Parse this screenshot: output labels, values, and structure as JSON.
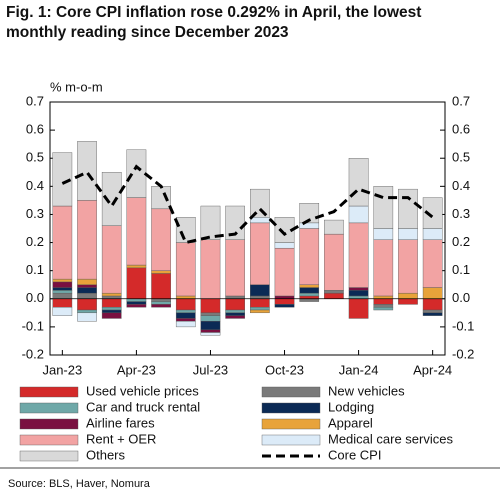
{
  "chart_data": {
    "type": "stacked-bar-line",
    "title": "Fig. 1: Core CPI inflation rose 0.292% in April, the lowest monthly reading since December 2023",
    "y_label": "% m-o-m",
    "source": "Source: BLS, Haver, Nomura",
    "categories": [
      "Jan-23",
      null,
      null,
      "Apr-23",
      null,
      null,
      "Jul-23",
      null,
      null,
      "Oct-23",
      null,
      null,
      "Jan-24",
      null,
      null,
      "Apr-24"
    ],
    "ylim": [
      -0.2,
      0.7
    ],
    "yticks": [
      -0.2,
      -0.1,
      {
        "value": 0,
        "label": "0.0"
      },
      0.1,
      0.2,
      0.3,
      0.4,
      0.5,
      0.6,
      0.7
    ],
    "series": [
      {
        "name": "Used vehicle prices",
        "color": "#d42a2a",
        "values": [
          -0.03,
          -0.04,
          -0.03,
          0.11,
          0.09,
          -0.04,
          -0.05,
          -0.04,
          -0.03,
          -0.02,
          0.01,
          0.02,
          -0.07,
          -0.02,
          -0.02,
          -0.04
        ]
      },
      {
        "name": "New vehicles",
        "color": "#7a7a7a",
        "values": [
          0.02,
          0.02,
          0.01,
          0,
          -0.01,
          0,
          -0.01,
          0.01,
          0.01,
          0,
          -0.01,
          0.01,
          0,
          -0.01,
          0,
          -0.01
        ]
      },
      {
        "name": "Car and truck rental",
        "color": "#6fa8a8",
        "values": [
          0.01,
          -0.01,
          -0.01,
          -0.01,
          -0.01,
          -0.01,
          -0.02,
          -0.01,
          -0.01,
          0,
          0.01,
          0,
          0.01,
          -0.01,
          0,
          0
        ]
      },
      {
        "name": "Lodging",
        "color": "#0b2a55",
        "values": [
          0.01,
          0.02,
          -0.01,
          -0.01,
          0,
          -0.02,
          -0.03,
          -0.01,
          0.04,
          -0.01,
          0.02,
          0,
          0.02,
          0,
          0,
          -0.01
        ]
      },
      {
        "name": "Airline fares",
        "color": "#7a1040",
        "values": [
          0.02,
          0.01,
          -0.02,
          -0.01,
          -0.01,
          -0.01,
          -0.01,
          -0.01,
          0,
          0.01,
          0,
          0,
          0.01,
          0,
          0,
          0
        ]
      },
      {
        "name": "Apparel",
        "color": "#e8a33a",
        "values": [
          0.01,
          0.02,
          0.01,
          0.01,
          0.01,
          0.01,
          0,
          0,
          -0.01,
          0,
          0.01,
          0,
          0,
          0.01,
          0.02,
          0.04
        ]
      },
      {
        "name": "Rent + OER",
        "color": "#f2a3a3",
        "values": [
          0.26,
          0.28,
          0.24,
          0.24,
          0.22,
          0.19,
          0.21,
          0.2,
          0.22,
          0.17,
          0.2,
          0.2,
          0.23,
          0.2,
          0.19,
          0.17
        ]
      },
      {
        "name": "Medical care services",
        "color": "#dcebf8",
        "values": [
          -0.03,
          -0.03,
          0,
          0,
          0,
          -0.02,
          -0.01,
          0,
          0.02,
          0.02,
          0.02,
          0,
          0.06,
          0.04,
          0.04,
          0.04
        ]
      },
      {
        "name": "Others",
        "color": "#d9d9d9",
        "values": [
          0.19,
          0.21,
          0.19,
          0.17,
          0.08,
          0.09,
          0.12,
          0.12,
          0.1,
          0.09,
          0.07,
          0.05,
          0.17,
          0.15,
          0.14,
          0.11
        ]
      }
    ],
    "line_series": {
      "name": "Core CPI",
      "color": "#000000",
      "values": [
        0.41,
        0.45,
        0.33,
        0.47,
        0.4,
        0.2,
        0.22,
        0.23,
        0.32,
        0.23,
        0.28,
        0.31,
        0.39,
        0.36,
        0.36,
        0.29
      ]
    }
  }
}
